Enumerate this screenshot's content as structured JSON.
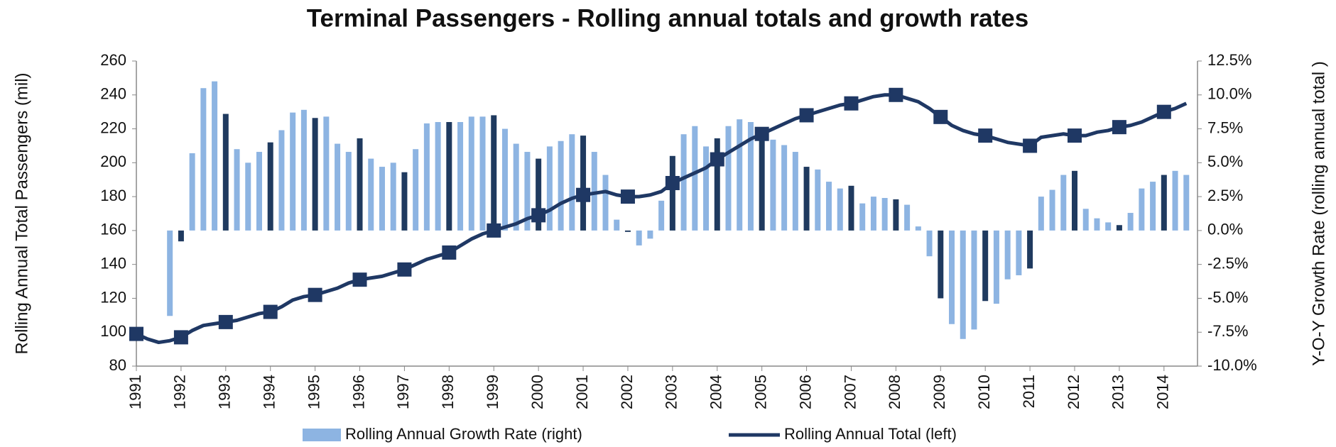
{
  "chart_data": {
    "type": "bar-line",
    "title": "Terminal Passengers - Rolling annual totals and growth rates",
    "y_label": "Rolling Annual Total Passengers (mil)",
    "y2_label": "Y-O-Y Growth Rate  (rolling annual total )",
    "x": [
      1991,
      1991.25,
      1991.5,
      1991.75,
      1992,
      1992.25,
      1992.5,
      1992.75,
      1993,
      1993.25,
      1993.5,
      1993.75,
      1994,
      1994.25,
      1994.5,
      1994.75,
      1995,
      1995.25,
      1995.5,
      1995.75,
      1996,
      1996.25,
      1996.5,
      1996.75,
      1997,
      1997.25,
      1997.5,
      1997.75,
      1998,
      1998.25,
      1998.5,
      1998.75,
      1999,
      1999.25,
      1999.5,
      1999.75,
      2000,
      2000.25,
      2000.5,
      2000.75,
      2001,
      2001.25,
      2001.5,
      2001.75,
      2002,
      2002.25,
      2002.5,
      2002.75,
      2003,
      2003.25,
      2003.5,
      2003.75,
      2004,
      2004.25,
      2004.5,
      2004.75,
      2005,
      2005.25,
      2005.5,
      2005.75,
      2006,
      2006.25,
      2006.5,
      2006.75,
      2007,
      2007.25,
      2007.5,
      2007.75,
      2008,
      2008.25,
      2008.5,
      2008.75,
      2009,
      2009.25,
      2009.5,
      2009.75,
      2010,
      2010.25,
      2010.5,
      2010.75,
      2011,
      2011.25,
      2011.5,
      2011.75,
      2012,
      2012.25,
      2012.5,
      2012.75,
      2013,
      2013.25,
      2013.5,
      2013.75,
      2014,
      2014.25,
      2014.5
    ],
    "series": [
      {
        "name": "Rolling Annual Growth Rate (right)",
        "type": "bar",
        "axis": "y2",
        "color": "#8db4e2",
        "highlight_color": "#1f3a5f",
        "values": [
          null,
          null,
          null,
          -6.3,
          -0.8,
          5.7,
          10.5,
          11.0,
          8.6,
          6.0,
          5.0,
          5.8,
          6.5,
          7.4,
          8.7,
          8.9,
          8.3,
          8.4,
          6.4,
          5.8,
          6.8,
          5.3,
          4.7,
          5.0,
          4.3,
          6.0,
          7.9,
          8.0,
          8.0,
          8.0,
          8.4,
          8.4,
          8.5,
          7.5,
          6.4,
          5.8,
          5.3,
          6.2,
          6.6,
          7.1,
          7.0,
          5.8,
          4.1,
          0.8,
          -0.1,
          -1.1,
          -0.6,
          2.2,
          5.5,
          7.1,
          7.7,
          6.2,
          6.8,
          7.7,
          8.2,
          8.0,
          7.4,
          6.7,
          6.3,
          5.8,
          4.7,
          4.5,
          3.6,
          3.1,
          3.3,
          2.0,
          2.5,
          2.4,
          2.3,
          1.9,
          0.3,
          -1.9,
          -5.0,
          -6.9,
          -8.0,
          -7.3,
          -5.2,
          -5.4,
          -3.6,
          -3.3,
          -2.8,
          2.5,
          3.0,
          4.1,
          4.4,
          1.6,
          0.9,
          0.6,
          0.4,
          1.3,
          3.1,
          3.6,
          4.1,
          4.4,
          4.1
        ]
      },
      {
        "name": "Rolling Annual Total (left)",
        "type": "line",
        "color": "#1f3864",
        "values": [
          99,
          96,
          94,
          95,
          97,
          101,
          104,
          105,
          106,
          107,
          109,
          111,
          112,
          115,
          119,
          121,
          122,
          124,
          126,
          129,
          131,
          132,
          133,
          135,
          137,
          140,
          143,
          145,
          147,
          151,
          155,
          158,
          160,
          162,
          164,
          167,
          169,
          172,
          176,
          179,
          181,
          182,
          183,
          181,
          180,
          180,
          181,
          183,
          188,
          191,
          194,
          197,
          202,
          206,
          210,
          214,
          217,
          220,
          223,
          226,
          228,
          230,
          232,
          234,
          235,
          237,
          239,
          240,
          240,
          238,
          236,
          232,
          227,
          222,
          219,
          217,
          216,
          214,
          212,
          211,
          210,
          215,
          216,
          217,
          216,
          216,
          218,
          219,
          221,
          222,
          224,
          227,
          230,
          232,
          235
        ]
      }
    ],
    "xlim": [
      1991,
      2014.75
    ],
    "xticks": [
      1991,
      1992,
      1993,
      1994,
      1995,
      1996,
      1997,
      1998,
      1999,
      2000,
      2001,
      2002,
      2003,
      2004,
      2005,
      2006,
      2007,
      2008,
      2009,
      2010,
      2011,
      2012,
      2013,
      2014
    ],
    "ylim": [
      80,
      260
    ],
    "yticks": [
      80,
      100,
      120,
      140,
      160,
      180,
      200,
      220,
      240,
      260
    ],
    "y2lim": [
      -10,
      12.5
    ],
    "y2ticks": [
      {
        "value": -10,
        "label": "-10.0%"
      },
      {
        "value": -7.5,
        "label": "-7.5%"
      },
      {
        "value": -5,
        "label": "-5.0%"
      },
      {
        "value": -2.5,
        "label": "-2.5%"
      },
      {
        "value": 0,
        "label": "0.0%"
      },
      {
        "value": 2.5,
        "label": "2.5%"
      },
      {
        "value": 5,
        "label": "5.0%"
      },
      {
        "value": 7.5,
        "label": "7.5%"
      },
      {
        "value": 10,
        "label": "10.0%"
      },
      {
        "value": 12.5,
        "label": "12.5%"
      }
    ],
    "grid": false,
    "legend": "bottom"
  }
}
